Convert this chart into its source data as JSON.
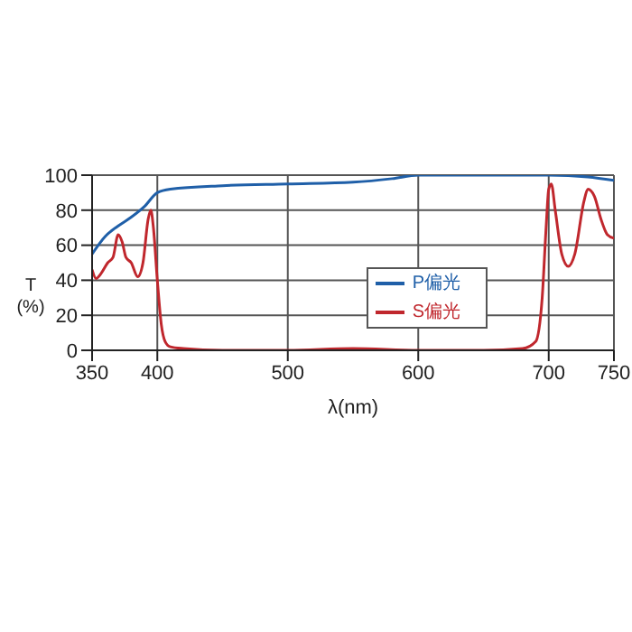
{
  "chart_data": {
    "type": "line",
    "xlabel": "λ(nm)",
    "ylabel": "T (%)",
    "xlim": [
      350,
      750
    ],
    "xticks": [
      350,
      400,
      500,
      600,
      700,
      750
    ],
    "ylim": [
      0,
      100
    ],
    "yticks": [
      0,
      20,
      40,
      60,
      80,
      100
    ],
    "grid": true,
    "legend": "right",
    "marker": "none",
    "series": [
      {
        "name": "P偏光",
        "color": "#1f5fa8",
        "x": [
          350,
          360,
          370,
          380,
          390,
          400,
          410,
          450,
          500,
          550,
          580,
          600,
          650,
          700,
          730,
          750
        ],
        "values": [
          55,
          65,
          71,
          76,
          82,
          90,
          92,
          94,
          95,
          96,
          98,
          100,
          100,
          100,
          99,
          97
        ]
      },
      {
        "name": "S偏光",
        "color": "#c0272d",
        "x": [
          350,
          353,
          357,
          362,
          366,
          370,
          373,
          376,
          380,
          385,
          389,
          393,
          395,
          397,
          400,
          403,
          406,
          410,
          420,
          450,
          500,
          550,
          600,
          650,
          680,
          690,
          695,
          698,
          700,
          702,
          705,
          710,
          715,
          720,
          727,
          730,
          735,
          740,
          745,
          750
        ],
        "values": [
          46,
          41,
          44,
          50,
          53,
          66,
          62,
          53,
          50,
          42,
          50,
          75,
          80,
          70,
          40,
          15,
          5,
          2,
          1,
          0,
          0,
          1,
          0,
          0,
          1,
          5,
          30,
          70,
          92,
          95,
          80,
          55,
          48,
          55,
          85,
          92,
          88,
          75,
          66,
          64
        ]
      }
    ]
  }
}
